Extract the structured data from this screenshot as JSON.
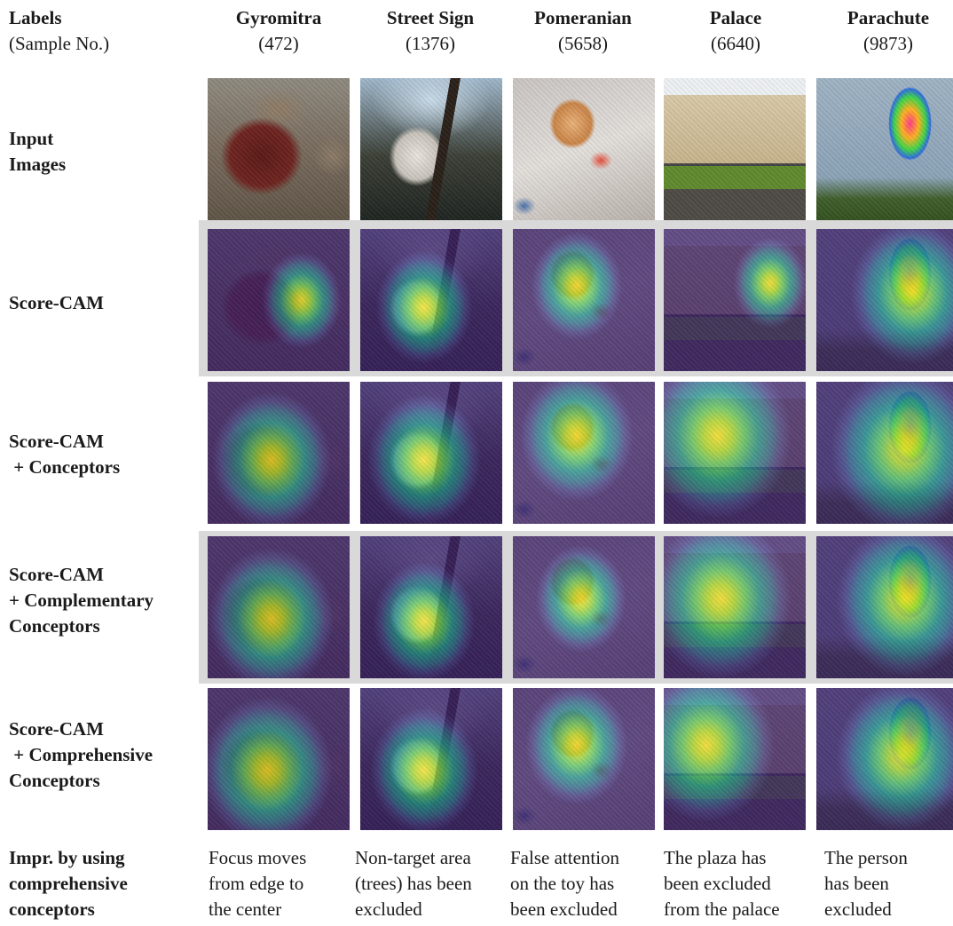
{
  "header": {
    "labels_title": "Labels",
    "labels_sub": "(Sample No.)"
  },
  "columns": [
    {
      "label": "Gyromitra",
      "sample": "(472)"
    },
    {
      "label": "Street Sign",
      "sample": "(1376)"
    },
    {
      "label": "Pomeranian",
      "sample": "(5658)"
    },
    {
      "label": "Palace",
      "sample": "(6640)"
    },
    {
      "label": "Parachute",
      "sample": "(9873)"
    }
  ],
  "rows": [
    {
      "label_lines": [
        "Input",
        "Images"
      ]
    },
    {
      "label_lines": [
        "Score-CAM"
      ]
    },
    {
      "label_lines": [
        "Score-CAM",
        " + Conceptors"
      ]
    },
    {
      "label_lines": [
        "Score-CAM",
        "+ Complementary",
        "Conceptors"
      ]
    },
    {
      "label_lines": [
        "Score-CAM",
        " + Comprehensive",
        "Conceptors"
      ]
    }
  ],
  "improvement": {
    "label_lines": [
      "Impr. by using",
      "comprehensive",
      "conceptors"
    ],
    "notes": [
      [
        "Focus moves",
        "from edge to",
        "the center"
      ],
      [
        "Non-target area",
        "(trees) has been",
        "excluded"
      ],
      [
        "False attention",
        "on the toy has",
        "been excluded"
      ],
      [
        "The plaza has",
        "been excluded",
        "from the palace"
      ],
      [
        "The person",
        "has been",
        "excluded"
      ]
    ]
  },
  "colors": {
    "highlight_band": "#d9d9d9",
    "heatmap_low": "#3b1f66",
    "heatmap_mid": "#21918c",
    "heatmap_high": "#fde725"
  }
}
